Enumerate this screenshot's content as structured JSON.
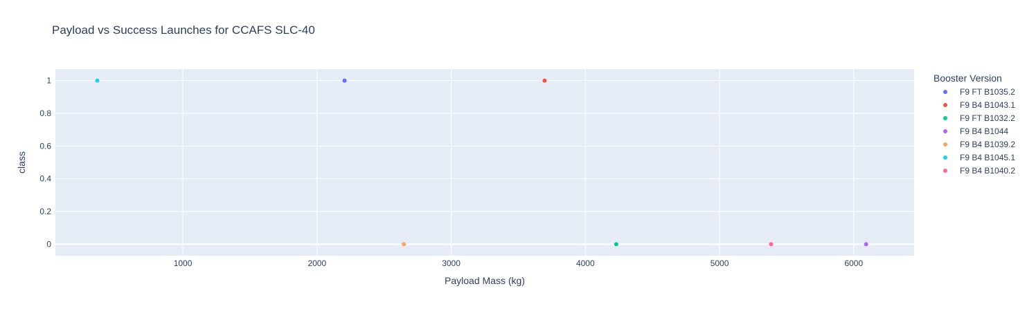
{
  "chart_data": {
    "type": "scatter",
    "title": "Payload vs Success Launches for CCAFS SLC-40",
    "xlabel": "Payload Mass (kg)",
    "ylabel": "class",
    "xlim": [
      50,
      6450
    ],
    "ylim": [
      -0.07,
      1.07
    ],
    "xticks": [
      1000,
      2000,
      3000,
      4000,
      5000,
      6000
    ],
    "yticks": [
      0,
      0.2,
      0.4,
      0.6,
      0.8,
      1
    ],
    "ytick_labels": [
      "0",
      "0.2",
      "0.4",
      "0.6",
      "0.8",
      "1"
    ],
    "grid": true,
    "legend_title": "Booster Version",
    "legend_position": "right",
    "series": [
      {
        "name": "F9 FT  B1035.2",
        "color": "#636efa",
        "points": [
          {
            "x": 2205,
            "y": 1
          }
        ]
      },
      {
        "name": "F9 B4 B1043.1",
        "color": "#ef553b",
        "points": [
          {
            "x": 3696,
            "y": 1
          }
        ]
      },
      {
        "name": "F9 FT  B1032.2",
        "color": "#00cc96",
        "points": [
          {
            "x": 4230,
            "y": 0
          }
        ]
      },
      {
        "name": "F9 B4 B1044",
        "color": "#ab63fa",
        "points": [
          {
            "x": 6092,
            "y": 0
          }
        ]
      },
      {
        "name": "F9 B4  B1039.2",
        "color": "#ffa15a",
        "points": [
          {
            "x": 2647,
            "y": 0
          }
        ]
      },
      {
        "name": "F9 B4 B1045.1",
        "color": "#19d3f3",
        "points": [
          {
            "x": 362,
            "y": 1
          }
        ]
      },
      {
        "name": "F9 B4  B1040.2",
        "color": "#ff6692",
        "points": [
          {
            "x": 5384,
            "y": 0
          }
        ]
      }
    ]
  }
}
